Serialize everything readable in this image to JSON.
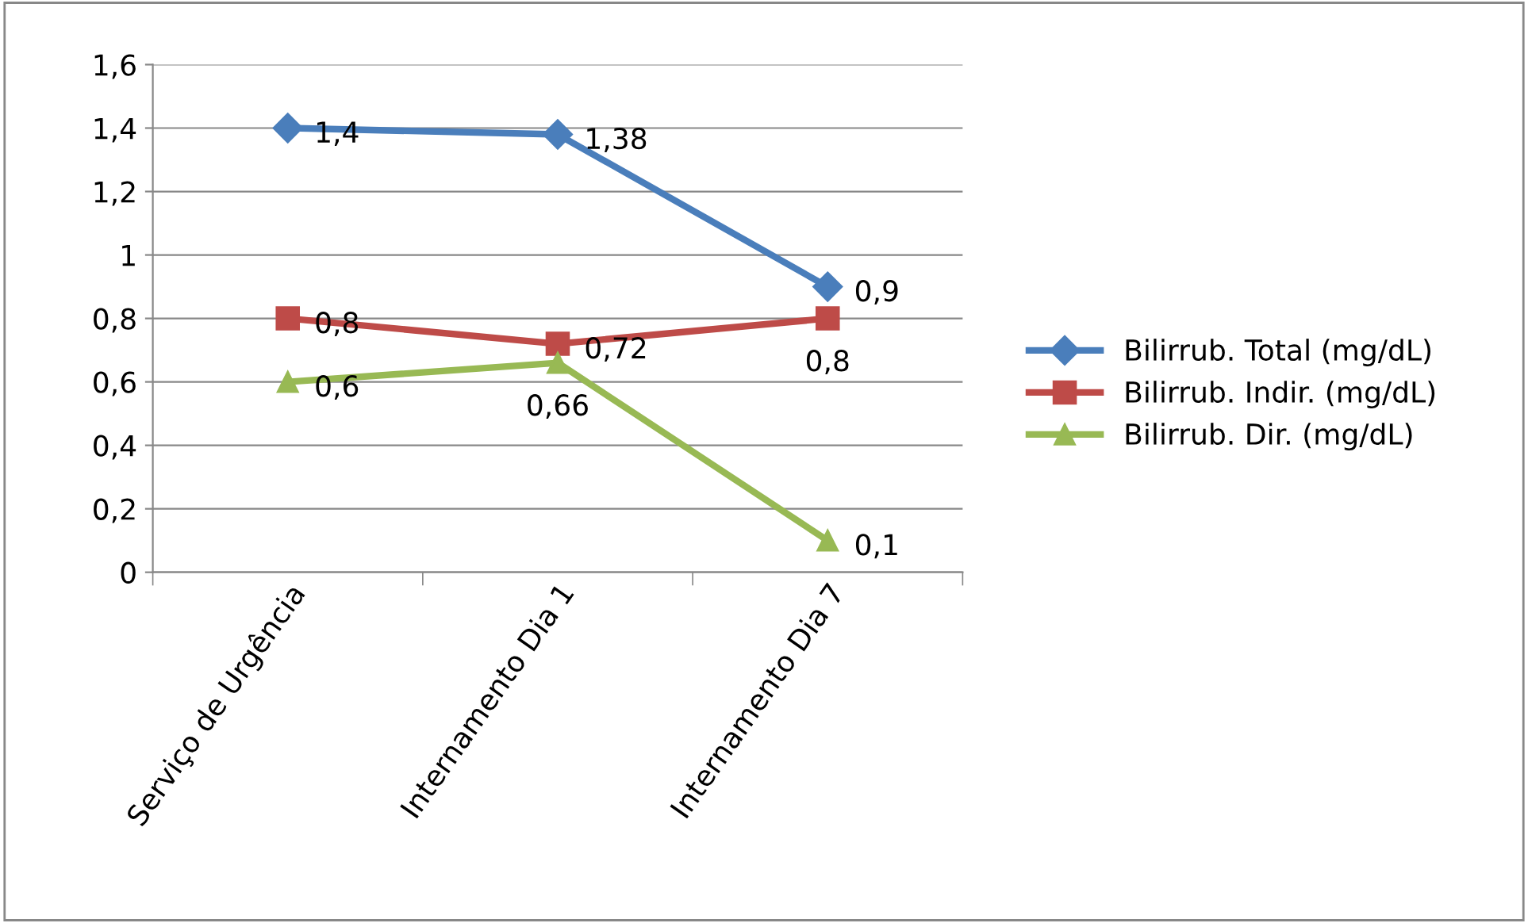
{
  "chart_data": {
    "type": "line",
    "categories": [
      "Serviço de Urgência",
      "Internamento Dia 1",
      "Internamento Dia 7"
    ],
    "series": [
      {
        "name": "Bilirrub. Total (mg/dL)",
        "color": "#4a7ebb",
        "marker": "diamond",
        "values": [
          1.4,
          1.38,
          0.9
        ],
        "value_labels": [
          "1,4",
          "1,38",
          "0,9"
        ]
      },
      {
        "name": "Bilirrub. Indir. (mg/dL)",
        "color": "#be4b48",
        "marker": "square",
        "values": [
          0.8,
          0.72,
          0.8
        ],
        "value_labels": [
          "0,8",
          "0,72",
          "0,8"
        ]
      },
      {
        "name": "Bilirrub. Dir. (mg/dL)",
        "color": "#98b954",
        "marker": "triangle",
        "values": [
          0.6,
          0.66,
          0.1
        ],
        "value_labels": [
          "0,6",
          "0,66",
          "0,1"
        ]
      }
    ],
    "ylim": [
      0,
      1.6
    ],
    "yticks": [
      0,
      {
        "value": 0.2,
        "label": "0,2"
      },
      {
        "value": 0.4,
        "label": "0,4"
      },
      {
        "value": 0.6,
        "label": "0,6"
      },
      {
        "value": 0.8,
        "label": "0,8"
      },
      1,
      {
        "value": 1.2,
        "label": "1,2"
      },
      {
        "value": 1.4,
        "label": "1,4"
      },
      {
        "value": 1.6,
        "label": "1,6"
      }
    ],
    "grid": "y",
    "legend": "right",
    "line_style": "solid"
  }
}
